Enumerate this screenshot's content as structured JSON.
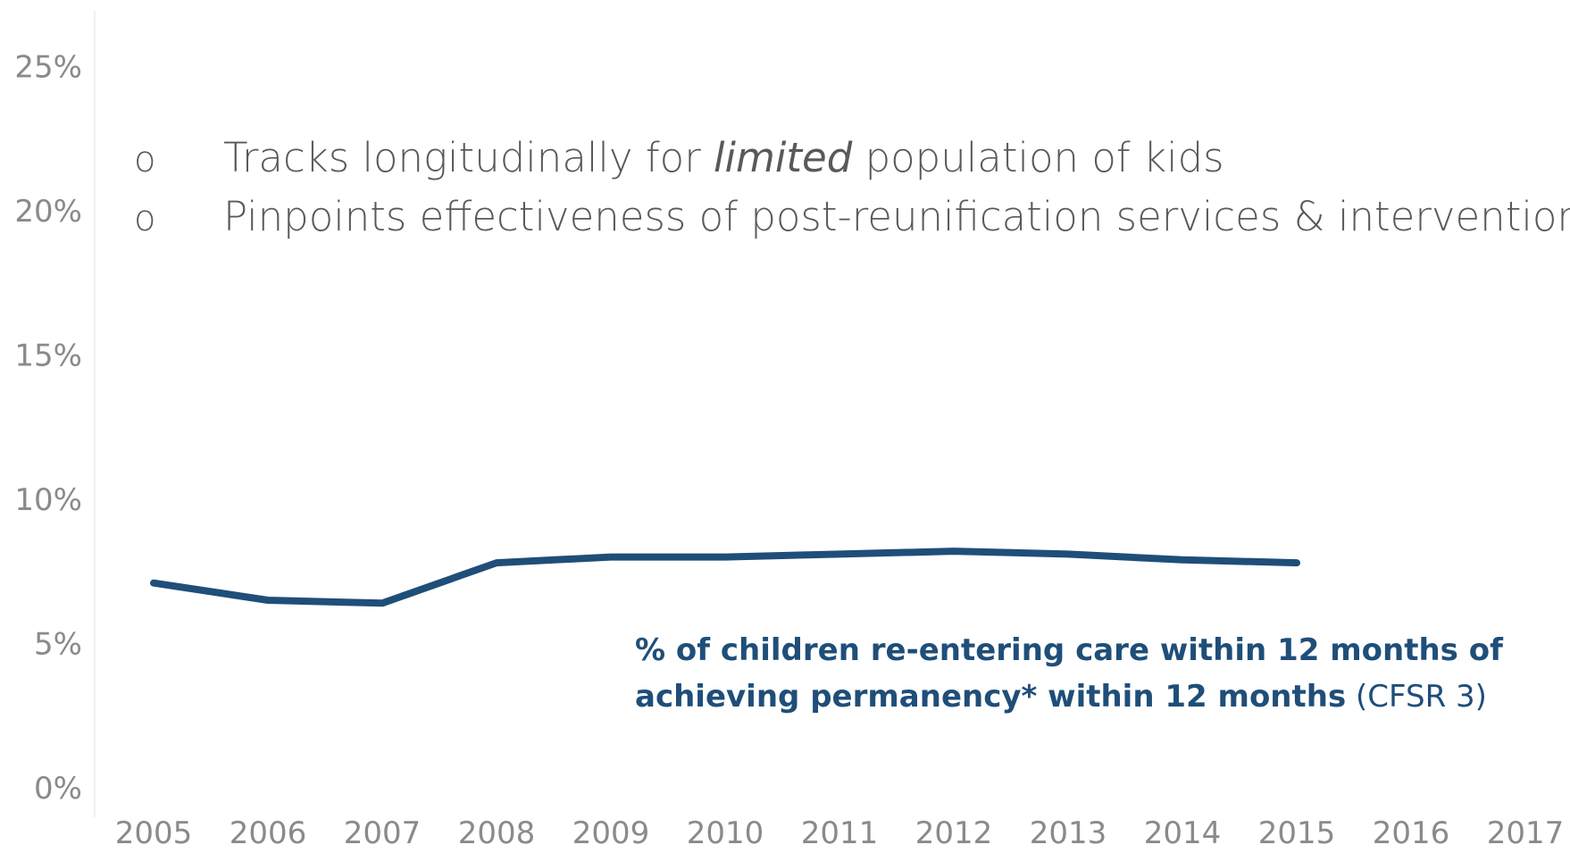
{
  "bullets": [
    {
      "marker": "o",
      "before": "Tracks longitudinally for ",
      "emphasis": "limited",
      "after": " population of kids"
    },
    {
      "marker": "o",
      "before": "Pinpoints effectiveness of post-reunification services & interventions",
      "emphasis": "",
      "after": ""
    }
  ],
  "annotation": {
    "line1": "% of children re-entering care within 12 months of",
    "line2_bold": "achieving permanency* within 12 months",
    "line2_light": " (CFSR 3)"
  },
  "colors": {
    "line": "#1f4e79",
    "axis_text": "#8a8a8a",
    "bullet_text": "#595959"
  },
  "chart_data": {
    "type": "line",
    "x": [
      "2005",
      "2006",
      "2007",
      "2008",
      "2009",
      "2010",
      "2011",
      "2012",
      "2013",
      "2014",
      "2015",
      "2016",
      "2017"
    ],
    "series": [
      {
        "values": [
          7.1,
          6.5,
          6.4,
          7.8,
          8.0,
          8.0,
          8.1,
          8.2,
          8.1,
          7.9,
          7.8,
          null,
          null
        ]
      }
    ],
    "y_ticks": [
      "0%",
      "5%",
      "10%",
      "15%",
      "20%",
      "25%"
    ],
    "y_tick_values": [
      0,
      5,
      10,
      15,
      20,
      25
    ],
    "ylim": [
      0,
      28
    ],
    "grid": false,
    "legend": "none"
  }
}
